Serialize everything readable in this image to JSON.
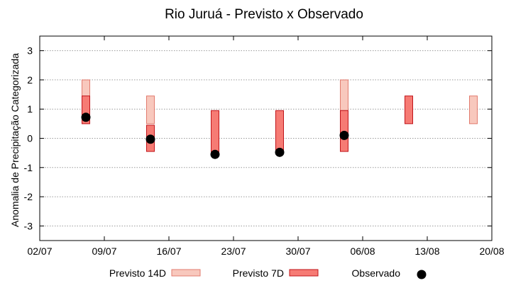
{
  "chart_data": {
    "type": "bar",
    "title": "Rio Juruá - Previsto x Observado",
    "xlabel": "",
    "ylabel": "Anomalia de Precipitação Categorizada",
    "xlim": [
      "2025-07-02",
      "2025-08-20"
    ],
    "xticks": [
      "02/07",
      "09/07",
      "16/07",
      "23/07",
      "30/07",
      "06/08",
      "13/08",
      "20/08"
    ],
    "ylim": [
      -3.5,
      3.5
    ],
    "yticks": [
      3,
      2,
      1,
      0,
      -1,
      -2,
      -3
    ],
    "grid": true,
    "legend_position": "bottom",
    "series": [
      {
        "name": "Previsto 14D",
        "kind": "range",
        "fill": "#f8c8bd",
        "stroke": "#e27b6e",
        "points": [
          {
            "date": "2025-07-07",
            "low": 0.5,
            "high": 2.0
          },
          {
            "date": "2025-07-14",
            "low": 0.5,
            "high": 1.45
          },
          {
            "date": "2025-08-04",
            "low": 0.95,
            "high": 2.0
          },
          {
            "date": "2025-08-18",
            "low": 0.5,
            "high": 1.45
          }
        ]
      },
      {
        "name": "Previsto 7D",
        "kind": "range",
        "fill": "#f67b74",
        "stroke": "#c0141a",
        "points": [
          {
            "date": "2025-07-07",
            "low": 0.5,
            "high": 1.45
          },
          {
            "date": "2025-07-14",
            "low": -0.45,
            "high": 0.45
          },
          {
            "date": "2025-07-21",
            "low": -0.55,
            "high": 0.95
          },
          {
            "date": "2025-07-28",
            "low": -0.45,
            "high": 0.95
          },
          {
            "date": "2025-08-04",
            "low": -0.45,
            "high": 0.95
          },
          {
            "date": "2025-08-11",
            "low": 0.5,
            "high": 1.45
          }
        ]
      },
      {
        "name": "Observado",
        "kind": "point",
        "color": "#000000",
        "points": [
          {
            "date": "2025-07-07",
            "value": 0.72
          },
          {
            "date": "2025-07-14",
            "value": -0.03
          },
          {
            "date": "2025-07-21",
            "value": -0.55
          },
          {
            "date": "2025-07-28",
            "value": -0.48
          },
          {
            "date": "2025-08-04",
            "value": 0.1
          }
        ]
      }
    ]
  }
}
